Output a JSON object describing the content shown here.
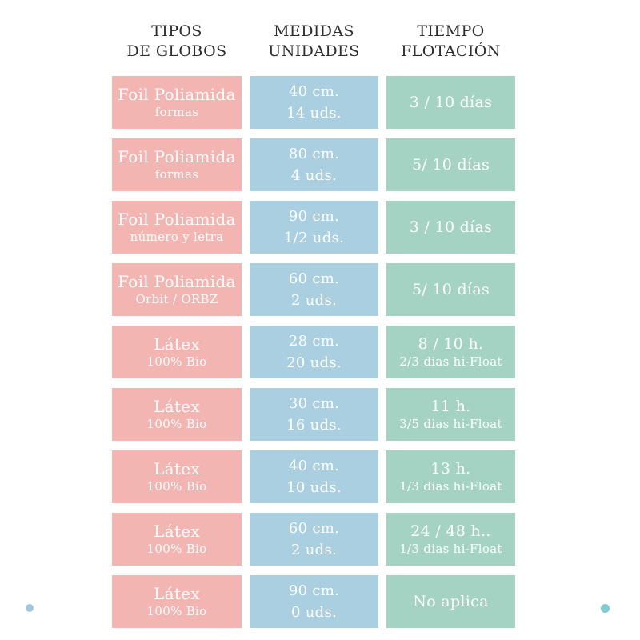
{
  "page": {
    "background": "#ffffff"
  },
  "columns": [
    {
      "id": "tipos",
      "header_lines": [
        "TIPOS",
        "DE GLOBOS"
      ],
      "color": "#f2b5b2"
    },
    {
      "id": "medidas",
      "header_lines": [
        "MEDIDAS",
        "UNIDADES"
      ],
      "color": "#a9cfe0"
    },
    {
      "id": "tiempo",
      "header_lines": [
        "TIEMPO",
        "FLOTACIÓN"
      ],
      "color": "#a5d3c3"
    }
  ],
  "text_colors": {
    "header": "#2e2e2e",
    "cell": "#ffffff"
  },
  "rows": [
    {
      "tipo": [
        "Foil Poliamida",
        "formas"
      ],
      "medida": [
        "40 cm.",
        "14 uds."
      ],
      "tiempo": [
        "3 / 10 días"
      ]
    },
    {
      "tipo": [
        "Foil Poliamida",
        "formas"
      ],
      "medida": [
        "80 cm.",
        "4 uds."
      ],
      "tiempo": [
        "5/ 10 días"
      ]
    },
    {
      "tipo": [
        "Foil Poliamida",
        "número y letra"
      ],
      "medida": [
        "90 cm.",
        "1/2 uds."
      ],
      "tiempo": [
        "3 / 10 días"
      ]
    },
    {
      "tipo": [
        "Foil Poliamida",
        "Orbit / ORBZ"
      ],
      "medida": [
        "60 cm.",
        "2 uds."
      ],
      "tiempo": [
        "5/ 10 días"
      ]
    },
    {
      "tipo": [
        "Látex",
        "100% Bio"
      ],
      "medida": [
        "28 cm.",
        "20 uds."
      ],
      "tiempo": [
        "8 / 10 h.",
        "2/3 dias hi-Float"
      ]
    },
    {
      "tipo": [
        "Látex",
        "100% Bio"
      ],
      "medida": [
        "30 cm.",
        "16 uds."
      ],
      "tiempo": [
        "11 h.",
        "3/5 dias hi-Float"
      ]
    },
    {
      "tipo": [
        "Látex",
        "100% Bio"
      ],
      "medida": [
        "40 cm.",
        "10 uds."
      ],
      "tiempo": [
        "13 h.",
        "1/3 dias hi-Float"
      ]
    },
    {
      "tipo": [
        "Látex",
        "100% Bio"
      ],
      "medida": [
        "60 cm.",
        "2 uds."
      ],
      "tiempo": [
        "24 / 48 h..",
        "1/3 dias hi-Float"
      ]
    },
    {
      "tipo": [
        "Látex",
        "100% Bio"
      ],
      "medida": [
        "90 cm.",
        "0 uds."
      ],
      "tiempo": [
        "No aplica"
      ]
    }
  ],
  "decor": {
    "left_dot_color": "#a2c9db",
    "right_dot_color": "#7fccd3"
  },
  "chart_data": {
    "type": "table",
    "title": "",
    "columns": [
      "TIPOS DE GLOBOS",
      "MEDIDAS UNIDADES",
      "TIEMPO FLOTACIÓN"
    ],
    "rows": [
      [
        "Foil Poliamida formas",
        "40 cm. / 14 uds.",
        "3 / 10 días"
      ],
      [
        "Foil Poliamida formas",
        "80 cm. / 4 uds.",
        "5/ 10 días"
      ],
      [
        "Foil Poliamida número y letra",
        "90 cm. / 1/2 uds.",
        "3 / 10 días"
      ],
      [
        "Foil Poliamida Orbit / ORBZ",
        "60 cm. / 2 uds.",
        "5/ 10 días"
      ],
      [
        "Látex 100% Bio",
        "28 cm. / 20 uds.",
        "8 / 10 h. — 2/3 dias hi-Float"
      ],
      [
        "Látex 100% Bio",
        "30 cm. / 16 uds.",
        "11 h. — 3/5 dias hi-Float"
      ],
      [
        "Látex 100% Bio",
        "40 cm. / 10 uds.",
        "13 h. — 1/3 dias hi-Float"
      ],
      [
        "Látex 100% Bio",
        "60 cm. / 2 uds.",
        "24 / 48 h.. — 1/3 dias hi-Float"
      ],
      [
        "Látex 100% Bio",
        "90 cm. / 0 uds.",
        "No aplica"
      ]
    ],
    "column_colors": [
      "#f2b5b2",
      "#a9cfe0",
      "#a5d3c3"
    ],
    "layout": "3-column color-coded grid, 9 rows, centered headers above columns"
  }
}
